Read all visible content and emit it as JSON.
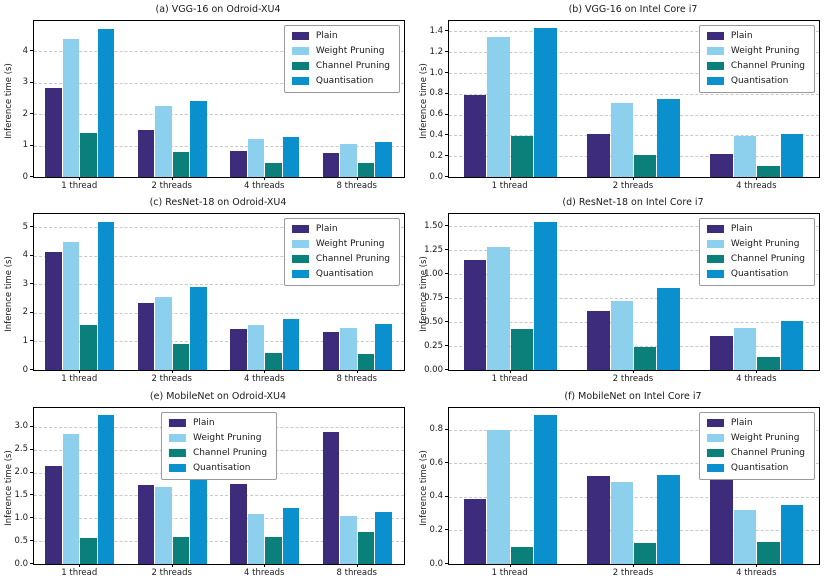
{
  "chart_data": [
    {
      "type": "bar",
      "title": "(a) VGG-16 on Odroid-XU4",
      "ylabel": "Inference time (s)",
      "categories": [
        "1 thread",
        "2 threads",
        "4 threads",
        "8 threads"
      ],
      "series": [
        {
          "name": "Plain",
          "color": "#3D2C7C",
          "values": [
            2.82,
            1.48,
            0.82,
            0.75
          ]
        },
        {
          "name": "Weight Pruning",
          "color": "#8DD0EE",
          "values": [
            4.38,
            2.27,
            1.2,
            1.06
          ]
        },
        {
          "name": "Channel Pruning",
          "color": "#0B7F7A",
          "values": [
            1.4,
            0.78,
            0.46,
            0.45
          ]
        },
        {
          "name": "Quantisation",
          "color": "#0A90CC",
          "values": [
            4.72,
            2.42,
            1.28,
            1.11
          ]
        }
      ],
      "ylim": [
        0,
        4.96
      ],
      "yticks": [
        "0",
        "1",
        "2",
        "3",
        "4"
      ],
      "grid": true,
      "legend_position": "upper-right"
    },
    {
      "type": "bar",
      "title": "(b) VGG-16 on Intel Core i7",
      "ylabel": "Inference time (s)",
      "categories": [
        "1 thread",
        "2 threads",
        "4 threads"
      ],
      "series": [
        {
          "name": "Plain",
          "color": "#3D2C7C",
          "values": [
            0.79,
            0.41,
            0.22
          ]
        },
        {
          "name": "Weight Pruning",
          "color": "#8DD0EE",
          "values": [
            1.35,
            0.71,
            0.39
          ]
        },
        {
          "name": "Channel Pruning",
          "color": "#0B7F7A",
          "values": [
            0.39,
            0.21,
            0.11
          ]
        },
        {
          "name": "Quantisation",
          "color": "#0A90CC",
          "values": [
            1.43,
            0.75,
            0.41
          ]
        }
      ],
      "ylim": [
        0,
        1.5
      ],
      "yticks": [
        "0.0",
        "0.2",
        "0.4",
        "0.6",
        "0.8",
        "1.0",
        "1.2",
        "1.4"
      ],
      "grid": true,
      "legend_position": "upper-right"
    },
    {
      "type": "bar",
      "title": "(c) ResNet-18 on Odroid-XU4",
      "ylabel": "Inference time (s)",
      "categories": [
        "1 thread",
        "2 threads",
        "4 threads",
        "8 threads"
      ],
      "series": [
        {
          "name": "Plain",
          "color": "#3D2C7C",
          "values": [
            4.12,
            2.33,
            1.44,
            1.32
          ]
        },
        {
          "name": "Weight Pruning",
          "color": "#8DD0EE",
          "values": [
            4.47,
            2.54,
            1.59,
            1.46
          ]
        },
        {
          "name": "Channel Pruning",
          "color": "#0B7F7A",
          "values": [
            1.58,
            0.9,
            0.58,
            0.56
          ]
        },
        {
          "name": "Quantisation",
          "color": "#0A90CC",
          "values": [
            5.19,
            2.9,
            1.78,
            1.61
          ]
        }
      ],
      "ylim": [
        0,
        5.46
      ],
      "yticks": [
        "0",
        "1",
        "2",
        "3",
        "4",
        "5"
      ],
      "grid": true,
      "legend_position": "upper-right"
    },
    {
      "type": "bar",
      "title": "(d) ResNet-18 on Intel Core i7",
      "ylabel": "Inference time (s)",
      "categories": [
        "1 thread",
        "2 threads",
        "4 threads"
      ],
      "series": [
        {
          "name": "Plain",
          "color": "#3D2C7C",
          "values": [
            1.15,
            0.62,
            0.36
          ]
        },
        {
          "name": "Weight Pruning",
          "color": "#8DD0EE",
          "values": [
            1.29,
            0.72,
            0.44
          ]
        },
        {
          "name": "Channel Pruning",
          "color": "#0B7F7A",
          "values": [
            0.43,
            0.24,
            0.14
          ]
        },
        {
          "name": "Quantisation",
          "color": "#0A90CC",
          "values": [
            1.55,
            0.86,
            0.51
          ]
        }
      ],
      "ylim": [
        0,
        1.63
      ],
      "yticks": [
        "0.00",
        "0.25",
        "0.50",
        "0.75",
        "1.00",
        "1.25",
        "1.50"
      ],
      "grid": true,
      "legend_position": "upper-right"
    },
    {
      "type": "bar",
      "title": "(e) MobileNet on Odroid-XU4",
      "ylabel": "Inference time (s)",
      "categories": [
        "1 thread",
        "2 threads",
        "4 threads",
        "8 threads"
      ],
      "series": [
        {
          "name": "Plain",
          "color": "#3D2C7C",
          "values": [
            2.14,
            1.72,
            1.75,
            2.89
          ]
        },
        {
          "name": "Weight Pruning",
          "color": "#8DD0EE",
          "values": [
            2.85,
            1.68,
            1.1,
            1.05
          ]
        },
        {
          "name": "Channel Pruning",
          "color": "#0B7F7A",
          "values": [
            0.56,
            0.6,
            0.59,
            0.7
          ]
        },
        {
          "name": "Quantisation",
          "color": "#0A90CC",
          "values": [
            3.25,
            1.9,
            1.22,
            1.14
          ]
        }
      ],
      "ylim": [
        0,
        3.41
      ],
      "yticks": [
        "0.0",
        "0.5",
        "1.0",
        "1.5",
        "2.0",
        "2.5",
        "3.0"
      ],
      "grid": true,
      "legend_position": "upper-center"
    },
    {
      "type": "bar",
      "title": "(f) MobileNet on Intel Core i7",
      "ylabel": "Inference time (s)",
      "categories": [
        "1 thread",
        "2 threads",
        "4 threads"
      ],
      "series": [
        {
          "name": "Plain",
          "color": "#3D2C7C",
          "values": [
            0.385,
            0.525,
            0.55
          ]
        },
        {
          "name": "Weight Pruning",
          "color": "#8DD0EE",
          "values": [
            0.8,
            0.49,
            0.32
          ]
        },
        {
          "name": "Channel Pruning",
          "color": "#0B7F7A",
          "values": [
            0.1,
            0.125,
            0.13
          ]
        },
        {
          "name": "Quantisation",
          "color": "#0A90CC",
          "values": [
            0.89,
            0.53,
            0.35
          ]
        }
      ],
      "ylim": [
        0,
        0.93
      ],
      "yticks": [
        "0.0",
        "0.2",
        "0.4",
        "0.6",
        "0.8"
      ],
      "grid": true,
      "legend_position": "upper-right"
    }
  ]
}
